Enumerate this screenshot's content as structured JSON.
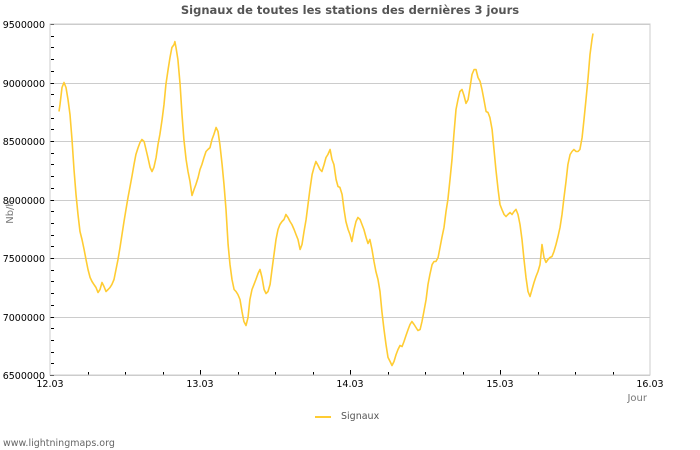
{
  "chart_data": {
    "type": "line",
    "title": "Signaux de toutes les stations des dernières 3 jours",
    "xlabel": "Jour",
    "ylabel": "Nb/h",
    "x_ticks": [
      "12.03",
      "13.03",
      "14.03",
      "15.03",
      "16.03"
    ],
    "y_ticks": [
      6500000,
      7000000,
      7500000,
      8000000,
      8500000,
      9000000,
      9500000
    ],
    "y_tick_labels": [
      "6500000",
      "7000000",
      "7500000",
      "8000000",
      "8500000",
      "9000000",
      "9500000"
    ],
    "xlim": [
      0,
      4
    ],
    "ylim": [
      6500000,
      9500000
    ],
    "grid": true,
    "legend_position": "bottom",
    "series": [
      {
        "name": "Signaux",
        "color": "#ffcc33",
        "x_unit": "days since 12.03 00:00",
        "points": [
          [
            0.06,
            8752000
          ],
          [
            0.067,
            8812000
          ],
          [
            0.08,
            8957000
          ],
          [
            0.093,
            9000000
          ],
          [
            0.107,
            8957000
          ],
          [
            0.12,
            8855000
          ],
          [
            0.133,
            8726000
          ],
          [
            0.147,
            8513000
          ],
          [
            0.16,
            8256000
          ],
          [
            0.173,
            8043000
          ],
          [
            0.187,
            7872000
          ],
          [
            0.2,
            7726000
          ],
          [
            0.213,
            7658000
          ],
          [
            0.227,
            7573000
          ],
          [
            0.24,
            7487000
          ],
          [
            0.253,
            7402000
          ],
          [
            0.267,
            7333000
          ],
          [
            0.28,
            7299000
          ],
          [
            0.293,
            7274000
          ],
          [
            0.307,
            7248000
          ],
          [
            0.32,
            7205000
          ],
          [
            0.333,
            7231000
          ],
          [
            0.347,
            7291000
          ],
          [
            0.36,
            7256000
          ],
          [
            0.373,
            7214000
          ],
          [
            0.387,
            7231000
          ],
          [
            0.4,
            7248000
          ],
          [
            0.413,
            7274000
          ],
          [
            0.427,
            7316000
          ],
          [
            0.44,
            7402000
          ],
          [
            0.453,
            7487000
          ],
          [
            0.467,
            7590000
          ],
          [
            0.48,
            7701000
          ],
          [
            0.493,
            7812000
          ],
          [
            0.507,
            7915000
          ],
          [
            0.52,
            8017000
          ],
          [
            0.533,
            8103000
          ],
          [
            0.547,
            8205000
          ],
          [
            0.56,
            8299000
          ],
          [
            0.573,
            8385000
          ],
          [
            0.587,
            8444000
          ],
          [
            0.6,
            8487000
          ],
          [
            0.613,
            8513000
          ],
          [
            0.627,
            8496000
          ],
          [
            0.64,
            8427000
          ],
          [
            0.653,
            8359000
          ],
          [
            0.667,
            8274000
          ],
          [
            0.68,
            8239000
          ],
          [
            0.693,
            8274000
          ],
          [
            0.707,
            8359000
          ],
          [
            0.72,
            8470000
          ],
          [
            0.733,
            8556000
          ],
          [
            0.747,
            8684000
          ],
          [
            0.76,
            8812000
          ],
          [
            0.773,
            8983000
          ],
          [
            0.787,
            9111000
          ],
          [
            0.8,
            9214000
          ],
          [
            0.813,
            9299000
          ],
          [
            0.827,
            9325000
          ],
          [
            0.833,
            9350000
          ],
          [
            0.84,
            9299000
          ],
          [
            0.853,
            9197000
          ],
          [
            0.867,
            8983000
          ],
          [
            0.88,
            8726000
          ],
          [
            0.893,
            8513000
          ],
          [
            0.907,
            8342000
          ],
          [
            0.92,
            8239000
          ],
          [
            0.933,
            8154000
          ],
          [
            0.947,
            8034000
          ],
          [
            0.96,
            8085000
          ],
          [
            0.973,
            8128000
          ],
          [
            0.987,
            8188000
          ],
          [
            1.0,
            8256000
          ],
          [
            1.013,
            8299000
          ],
          [
            1.027,
            8359000
          ],
          [
            1.04,
            8410000
          ],
          [
            1.053,
            8427000
          ],
          [
            1.067,
            8444000
          ],
          [
            1.08,
            8513000
          ],
          [
            1.093,
            8556000
          ],
          [
            1.107,
            8615000
          ],
          [
            1.12,
            8581000
          ],
          [
            1.133,
            8470000
          ],
          [
            1.147,
            8299000
          ],
          [
            1.16,
            8128000
          ],
          [
            1.173,
            7915000
          ],
          [
            1.187,
            7615000
          ],
          [
            1.2,
            7444000
          ],
          [
            1.213,
            7316000
          ],
          [
            1.227,
            7231000
          ],
          [
            1.24,
            7214000
          ],
          [
            1.253,
            7188000
          ],
          [
            1.267,
            7145000
          ],
          [
            1.28,
            7043000
          ],
          [
            1.293,
            6957000
          ],
          [
            1.307,
            6923000
          ],
          [
            1.32,
            6991000
          ],
          [
            1.333,
            7145000
          ],
          [
            1.347,
            7231000
          ],
          [
            1.36,
            7274000
          ],
          [
            1.373,
            7316000
          ],
          [
            1.387,
            7368000
          ],
          [
            1.4,
            7402000
          ],
          [
            1.413,
            7333000
          ],
          [
            1.427,
            7231000
          ],
          [
            1.44,
            7197000
          ],
          [
            1.453,
            7214000
          ],
          [
            1.467,
            7274000
          ],
          [
            1.48,
            7402000
          ],
          [
            1.493,
            7530000
          ],
          [
            1.507,
            7658000
          ],
          [
            1.52,
            7744000
          ],
          [
            1.533,
            7786000
          ],
          [
            1.547,
            7812000
          ],
          [
            1.56,
            7829000
          ],
          [
            1.573,
            7872000
          ],
          [
            1.587,
            7846000
          ],
          [
            1.6,
            7812000
          ],
          [
            1.613,
            7786000
          ],
          [
            1.627,
            7744000
          ],
          [
            1.64,
            7701000
          ],
          [
            1.653,
            7658000
          ],
          [
            1.667,
            7573000
          ],
          [
            1.68,
            7615000
          ],
          [
            1.693,
            7726000
          ],
          [
            1.707,
            7829000
          ],
          [
            1.72,
            7957000
          ],
          [
            1.733,
            8085000
          ],
          [
            1.747,
            8214000
          ],
          [
            1.76,
            8274000
          ],
          [
            1.773,
            8325000
          ],
          [
            1.787,
            8291000
          ],
          [
            1.8,
            8256000
          ],
          [
            1.813,
            8239000
          ],
          [
            1.827,
            8299000
          ],
          [
            1.84,
            8359000
          ],
          [
            1.853,
            8385000
          ],
          [
            1.867,
            8427000
          ],
          [
            1.88,
            8342000
          ],
          [
            1.893,
            8299000
          ],
          [
            1.907,
            8171000
          ],
          [
            1.92,
            8111000
          ],
          [
            1.933,
            8103000
          ],
          [
            1.947,
            8043000
          ],
          [
            1.96,
            7915000
          ],
          [
            1.973,
            7812000
          ],
          [
            1.987,
            7744000
          ],
          [
            2.0,
            7701000
          ],
          [
            2.013,
            7641000
          ],
          [
            2.027,
            7744000
          ],
          [
            2.04,
            7812000
          ],
          [
            2.053,
            7846000
          ],
          [
            2.067,
            7829000
          ],
          [
            2.08,
            7786000
          ],
          [
            2.093,
            7744000
          ],
          [
            2.107,
            7675000
          ],
          [
            2.12,
            7624000
          ],
          [
            2.133,
            7658000
          ],
          [
            2.147,
            7573000
          ],
          [
            2.16,
            7470000
          ],
          [
            2.173,
            7385000
          ],
          [
            2.187,
            7316000
          ],
          [
            2.2,
            7214000
          ],
          [
            2.213,
            7043000
          ],
          [
            2.227,
            6889000
          ],
          [
            2.24,
            6761000
          ],
          [
            2.253,
            6650000
          ],
          [
            2.267,
            6615000
          ],
          [
            2.28,
            6581000
          ],
          [
            2.293,
            6615000
          ],
          [
            2.307,
            6675000
          ],
          [
            2.32,
            6718000
          ],
          [
            2.333,
            6752000
          ],
          [
            2.347,
            6744000
          ],
          [
            2.36,
            6786000
          ],
          [
            2.373,
            6838000
          ],
          [
            2.387,
            6889000
          ],
          [
            2.4,
            6932000
          ],
          [
            2.413,
            6957000
          ],
          [
            2.427,
            6932000
          ],
          [
            2.44,
            6906000
          ],
          [
            2.453,
            6880000
          ],
          [
            2.467,
            6889000
          ],
          [
            2.48,
            6957000
          ],
          [
            2.493,
            7043000
          ],
          [
            2.507,
            7145000
          ],
          [
            2.52,
            7274000
          ],
          [
            2.533,
            7359000
          ],
          [
            2.547,
            7444000
          ],
          [
            2.56,
            7470000
          ],
          [
            2.573,
            7470000
          ],
          [
            2.587,
            7504000
          ],
          [
            2.6,
            7590000
          ],
          [
            2.613,
            7675000
          ],
          [
            2.627,
            7761000
          ],
          [
            2.64,
            7897000
          ],
          [
            2.653,
            8000000
          ],
          [
            2.667,
            8171000
          ],
          [
            2.68,
            8342000
          ],
          [
            2.693,
            8556000
          ],
          [
            2.707,
            8769000
          ],
          [
            2.72,
            8855000
          ],
          [
            2.733,
            8923000
          ],
          [
            2.747,
            8940000
          ],
          [
            2.76,
            8889000
          ],
          [
            2.773,
            8821000
          ],
          [
            2.787,
            8855000
          ],
          [
            2.8,
            8957000
          ],
          [
            2.813,
            9068000
          ],
          [
            2.827,
            9111000
          ],
          [
            2.84,
            9111000
          ],
          [
            2.853,
            9043000
          ],
          [
            2.867,
            9009000
          ],
          [
            2.88,
            8940000
          ],
          [
            2.893,
            8855000
          ],
          [
            2.907,
            8752000
          ],
          [
            2.92,
            8744000
          ],
          [
            2.933,
            8701000
          ],
          [
            2.947,
            8598000
          ],
          [
            2.96,
            8427000
          ],
          [
            2.973,
            8256000
          ],
          [
            2.987,
            8085000
          ],
          [
            3.0,
            7957000
          ],
          [
            3.013,
            7915000
          ],
          [
            3.027,
            7872000
          ],
          [
            3.04,
            7855000
          ],
          [
            3.053,
            7872000
          ],
          [
            3.067,
            7889000
          ],
          [
            3.08,
            7872000
          ],
          [
            3.093,
            7897000
          ],
          [
            3.107,
            7915000
          ],
          [
            3.12,
            7872000
          ],
          [
            3.133,
            7786000
          ],
          [
            3.147,
            7658000
          ],
          [
            3.16,
            7487000
          ],
          [
            3.173,
            7333000
          ],
          [
            3.187,
            7214000
          ],
          [
            3.2,
            7171000
          ],
          [
            3.213,
            7231000
          ],
          [
            3.227,
            7291000
          ],
          [
            3.24,
            7342000
          ],
          [
            3.253,
            7385000
          ],
          [
            3.267,
            7444000
          ],
          [
            3.28,
            7615000
          ],
          [
            3.293,
            7504000
          ],
          [
            3.307,
            7462000
          ],
          [
            3.32,
            7487000
          ],
          [
            3.333,
            7504000
          ],
          [
            3.347,
            7513000
          ],
          [
            3.36,
            7556000
          ],
          [
            3.373,
            7615000
          ],
          [
            3.387,
            7684000
          ],
          [
            3.4,
            7761000
          ],
          [
            3.413,
            7872000
          ],
          [
            3.427,
            8017000
          ],
          [
            3.44,
            8154000
          ],
          [
            3.453,
            8299000
          ],
          [
            3.467,
            8385000
          ],
          [
            3.48,
            8410000
          ],
          [
            3.493,
            8427000
          ],
          [
            3.507,
            8410000
          ],
          [
            3.52,
            8410000
          ],
          [
            3.533,
            8427000
          ],
          [
            3.547,
            8530000
          ],
          [
            3.56,
            8684000
          ],
          [
            3.573,
            8855000
          ],
          [
            3.587,
            9043000
          ],
          [
            3.6,
            9239000
          ],
          [
            3.613,
            9368000
          ],
          [
            3.62,
            9419000
          ]
        ]
      }
    ]
  },
  "legend": {
    "items": [
      {
        "label": "Signaux",
        "color": "#ffcc33"
      }
    ]
  },
  "footer": {
    "text": "www.lightningmaps.org"
  }
}
